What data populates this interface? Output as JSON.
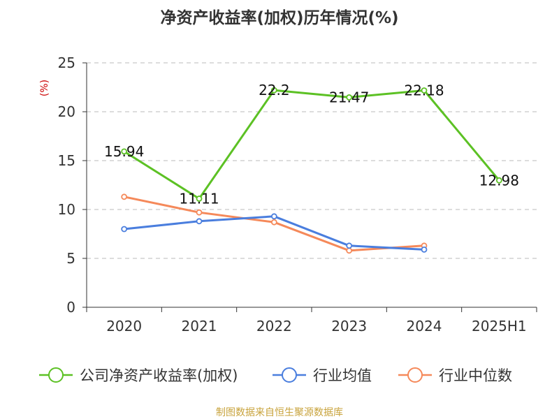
{
  "chart_data": {
    "type": "line",
    "title": "净资产收益率(加权)历年情况(%)",
    "ylabel": "(%)",
    "ylim": [
      0,
      25
    ],
    "yticks": [
      0,
      5,
      10,
      15,
      20,
      25
    ],
    "grid": true,
    "legend_position": "bottom",
    "categories": [
      "2020",
      "2021",
      "2022",
      "2023",
      "2024",
      "2025H1"
    ],
    "series": [
      {
        "name": "公司净资产收益率(加权)",
        "color": "#5cc124",
        "values": [
          15.94,
          11.11,
          22.2,
          21.47,
          22.18,
          12.98
        ],
        "labels": [
          "15.94",
          "11.11",
          "22.2",
          "21.47",
          "22.18",
          "12.98"
        ]
      },
      {
        "name": "行业均值",
        "color": "#4a7ede",
        "values": [
          8.0,
          8.8,
          9.3,
          6.3,
          5.9,
          null
        ]
      },
      {
        "name": "行业中位数",
        "color": "#f5895a",
        "values": [
          11.3,
          9.7,
          8.7,
          5.8,
          6.3,
          null
        ]
      }
    ]
  },
  "colors": {
    "unit_label": "#cc0000",
    "source_text": "#c8a33c",
    "axis": "#333333",
    "grid": "#bbbbbb"
  },
  "source": "制图数据来自恒生聚源数据库"
}
